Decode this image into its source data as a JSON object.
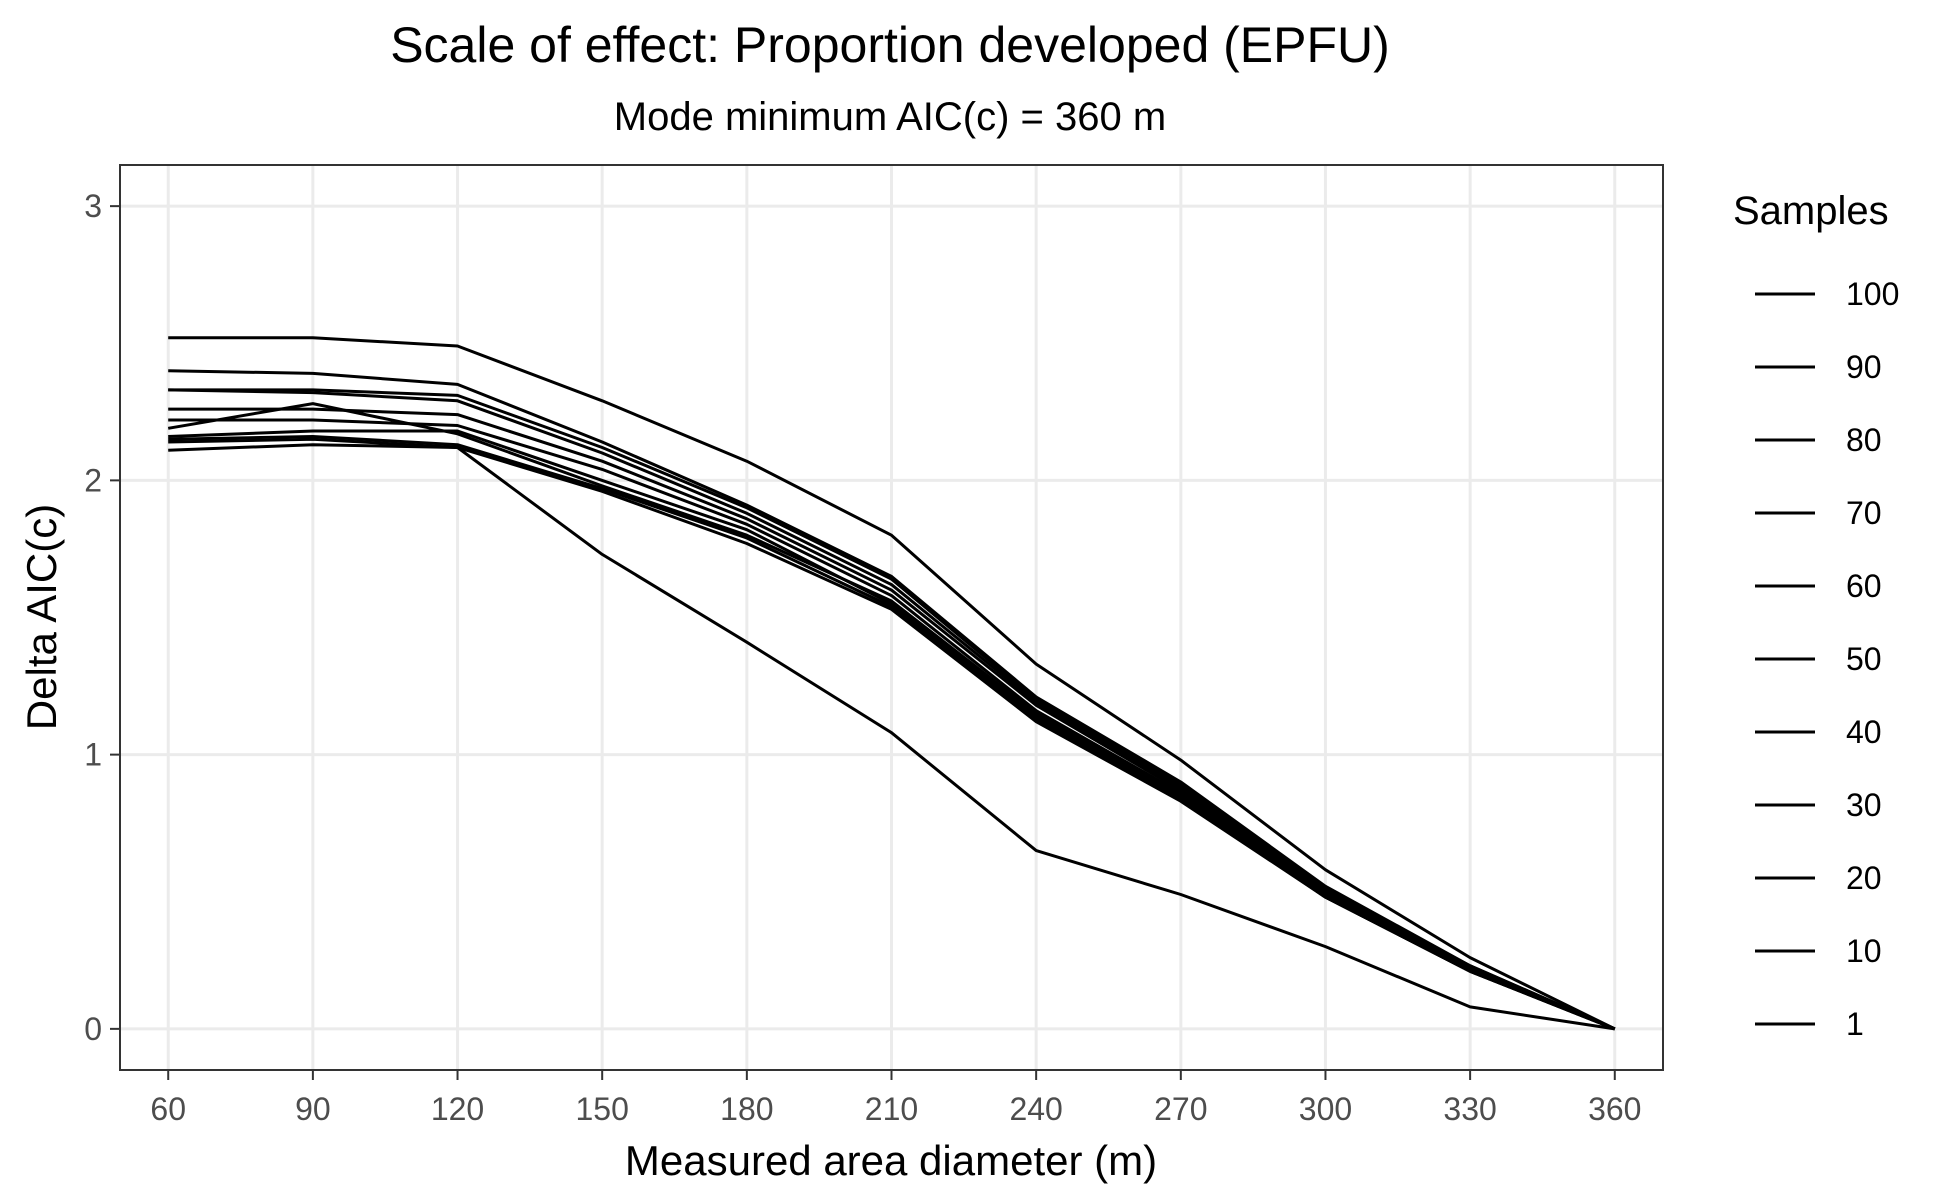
{
  "chart_data": {
    "type": "line",
    "title": "Scale of effect: Proportion developed (EPFU)",
    "subtitle": "Mode minimum AIC(c) = 360 m",
    "xlabel": "Measured area diameter (m)",
    "ylabel": "Delta AIC(c)",
    "x": [
      60,
      90,
      120,
      150,
      180,
      210,
      240,
      270,
      300,
      330,
      360
    ],
    "xlim": [
      50,
      370
    ],
    "ylim": [
      -0.15,
      3.15
    ],
    "x_ticks": [
      "60",
      "90",
      "120",
      "150",
      "180",
      "210",
      "240",
      "270",
      "300",
      "330",
      "360"
    ],
    "y_ticks": [
      0,
      1,
      2,
      3
    ],
    "y_tick_labels": [
      "0",
      "1",
      "2",
      "3"
    ],
    "grid": true,
    "legend": {
      "title": "Samples",
      "placement": "right",
      "entries": [
        "100",
        "90",
        "80",
        "70",
        "60",
        "50",
        "40",
        "30",
        "20",
        "10",
        "1"
      ]
    },
    "series": [
      {
        "values": [
          2.52,
          2.52,
          2.49,
          2.29,
          2.07,
          1.8,
          1.33,
          0.98,
          0.58,
          0.26,
          0.0
        ]
      },
      {
        "values": [
          2.4,
          2.39,
          2.35,
          2.14,
          1.91,
          1.65,
          1.21,
          0.9,
          0.52,
          0.23,
          0.0
        ]
      },
      {
        "values": [
          2.33,
          2.33,
          2.31,
          2.12,
          1.9,
          1.64,
          1.2,
          0.89,
          0.51,
          0.23,
          0.0
        ]
      },
      {
        "values": [
          2.33,
          2.32,
          2.29,
          2.1,
          1.88,
          1.62,
          1.19,
          0.88,
          0.5,
          0.22,
          0.0
        ]
      },
      {
        "values": [
          2.26,
          2.26,
          2.24,
          2.07,
          1.86,
          1.6,
          1.18,
          0.87,
          0.5,
          0.22,
          0.0
        ]
      },
      {
        "values": [
          2.22,
          2.22,
          2.2,
          2.04,
          1.84,
          1.58,
          1.16,
          0.86,
          0.49,
          0.22,
          0.0
        ]
      },
      {
        "values": [
          2.19,
          2.28,
          2.17,
          1.98,
          1.8,
          1.56,
          1.15,
          0.85,
          0.49,
          0.22,
          0.0
        ]
      },
      {
        "values": [
          2.16,
          2.18,
          2.18,
          2.0,
          1.82,
          1.55,
          1.14,
          0.84,
          0.48,
          0.21,
          0.0
        ]
      },
      {
        "values": [
          2.15,
          2.16,
          2.13,
          1.97,
          1.79,
          1.54,
          1.13,
          0.84,
          0.48,
          0.21,
          0.0
        ]
      },
      {
        "values": [
          2.11,
          2.13,
          2.12,
          1.96,
          1.77,
          1.53,
          1.12,
          0.83,
          0.48,
          0.21,
          0.0
        ]
      },
      {
        "values": [
          2.14,
          2.15,
          2.12,
          1.73,
          1.41,
          1.08,
          0.65,
          0.49,
          0.3,
          0.08,
          0.0
        ]
      }
    ],
    "colors": {
      "line": "#000000",
      "grid": "#ebebeb",
      "border": "#333333",
      "tick_text": "#4d4d4d"
    }
  }
}
